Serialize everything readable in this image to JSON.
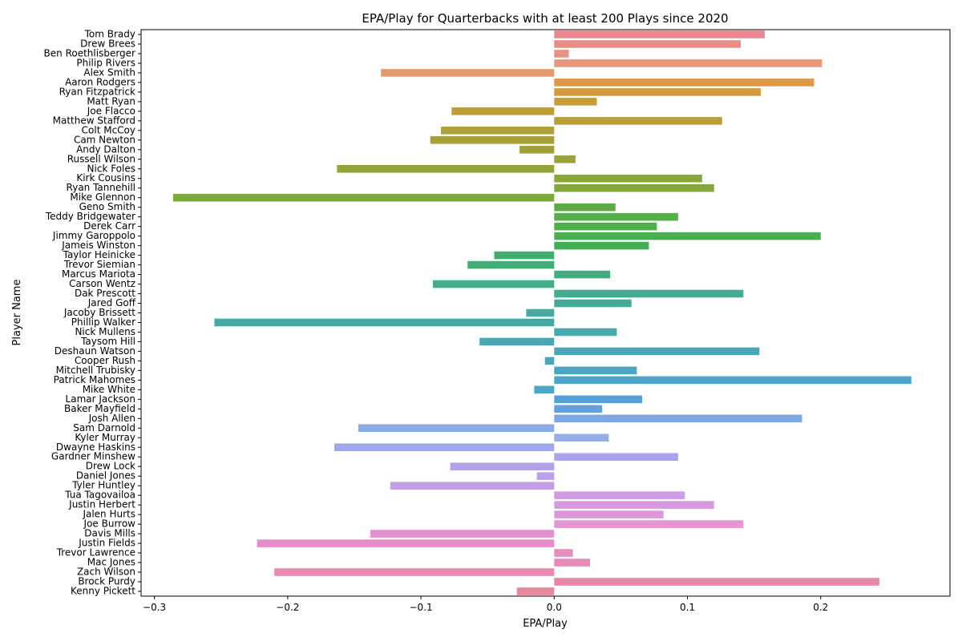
{
  "chart_data": {
    "type": "bar",
    "orientation": "horizontal",
    "title": "EPA/Play for Quarterbacks with at least 200 Plays since 2020",
    "xlabel": "EPA/Play",
    "ylabel": "Player Name",
    "xlim": [
      -0.31,
      0.297
    ],
    "x_ticks": [
      -0.3,
      -0.2,
      -0.1,
      0.0,
      0.1,
      0.2
    ],
    "x_tick_labels": [
      "−0.3",
      "−0.2",
      "−0.1",
      "0.0",
      "0.1",
      "0.2"
    ],
    "grid": false,
    "categories": [
      "Tom Brady",
      "Drew Brees",
      "Ben Roethlisberger",
      "Philip Rivers",
      "Alex Smith",
      "Aaron Rodgers",
      "Ryan Fitzpatrick",
      "Matt Ryan",
      "Joe Flacco",
      "Matthew Stafford",
      "Colt McCoy",
      "Cam Newton",
      "Andy Dalton",
      "Russell Wilson",
      "Nick Foles",
      "Kirk Cousins",
      "Ryan Tannehill",
      "Mike Glennon",
      "Geno Smith",
      "Teddy Bridgewater",
      "Derek Carr",
      "Jimmy Garoppolo",
      "Jameis Winston",
      "Taylor Heinicke",
      "Trevor Siemian",
      "Marcus Mariota",
      "Carson Wentz",
      "Dak Prescott",
      "Jared Goff",
      "Jacoby Brissett",
      "Phillip Walker",
      "Nick Mullens",
      "Taysom Hill",
      "Deshaun Watson",
      "Cooper Rush",
      "Mitchell Trubisky",
      "Patrick Mahomes",
      "Mike White",
      "Lamar Jackson",
      "Baker Mayfield",
      "Josh Allen",
      "Sam Darnold",
      "Kyler Murray",
      "Dwayne Haskins",
      "Gardner Minshew",
      "Drew Lock",
      "Daniel Jones",
      "Tyler Huntley",
      "Tua Tagovailoa",
      "Justin Herbert",
      "Jalen Hurts",
      "Joe Burrow",
      "Davis Mills",
      "Justin Fields",
      "Trevor Lawrence",
      "Mac Jones",
      "Zach Wilson",
      "Brock Purdy",
      "Kenny Pickett"
    ],
    "values": [
      0.158,
      0.14,
      0.011,
      0.201,
      -0.13,
      0.195,
      0.155,
      0.032,
      -0.077,
      0.126,
      -0.085,
      -0.093,
      -0.026,
      0.016,
      -0.163,
      0.111,
      0.12,
      -0.286,
      0.046,
      0.093,
      0.077,
      0.2,
      0.071,
      -0.045,
      -0.065,
      0.042,
      -0.091,
      0.142,
      0.058,
      -0.021,
      -0.255,
      0.047,
      -0.056,
      0.154,
      -0.007,
      0.062,
      0.268,
      -0.015,
      0.066,
      0.036,
      0.186,
      -0.147,
      0.041,
      -0.165,
      0.093,
      -0.078,
      -0.013,
      -0.123,
      0.098,
      0.12,
      0.082,
      0.142,
      -0.138,
      -0.223,
      0.014,
      0.027,
      -0.21,
      0.244,
      -0.028
    ],
    "colors": [
      "#e8878d",
      "#e88d85",
      "#e89380",
      "#e8987a",
      "#e69b6f",
      "#df9748",
      "#d59a3d",
      "#c99c3b",
      "#c09d3b",
      "#b79f3a",
      "#ae9f39",
      "#a7a039",
      "#a0a138",
      "#9aa239",
      "#91a339",
      "#89a63a",
      "#83a73c",
      "#7caa3c",
      "#5eab45",
      "#55ae47",
      "#4fae4b",
      "#48ae4f",
      "#43ad58",
      "#42ad6c",
      "#43ac77",
      "#44ac80",
      "#45ab88",
      "#46aa8f",
      "#47aa97",
      "#48aa9f",
      "#46a8a3",
      "#48a8ab",
      "#49a7b0",
      "#4aa6b6",
      "#4ba6bb",
      "#4ca5c1",
      "#4ea4c6",
      "#50a3cb",
      "#55a0d8",
      "#62a1dd",
      "#7da8e3",
      "#8aabe6",
      "#97aee8",
      "#a0a8ea",
      "#a7a5eb",
      "#b4a2e9",
      "#bba0ea",
      "#c59ee8",
      "#cf9be3",
      "#d799df",
      "#de96da",
      "#e594d5",
      "#e690d0",
      "#e78ec8",
      "#e88cc0",
      "#e88bb8",
      "#e889af",
      "#e888a7",
      "#e8879a"
    ]
  }
}
